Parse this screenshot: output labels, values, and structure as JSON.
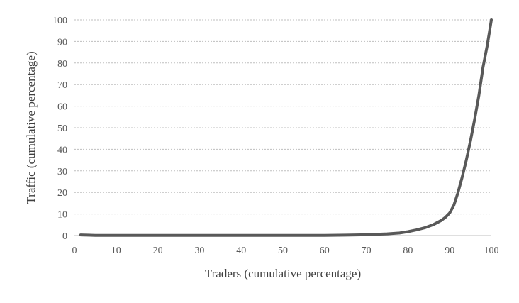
{
  "chart_data": {
    "type": "line",
    "title": "",
    "xlabel": "Traders (cumulative percentage)",
    "ylabel": "Traffic (cumulative percentage)",
    "xlim": [
      0,
      100
    ],
    "ylim": [
      0,
      100
    ],
    "xticks": [
      "0",
      "10",
      "20",
      "30",
      "40",
      "50",
      "60",
      "70",
      "80",
      "90",
      "100"
    ],
    "yticks": [
      "0",
      "10",
      "20",
      "30",
      "40",
      "50",
      "60",
      "70",
      "80",
      "90",
      "100"
    ],
    "grid": "horizontal dotted",
    "legend": "none",
    "series": [
      {
        "color": "#595959",
        "x": [
          1.5,
          5,
          10,
          20,
          30,
          40,
          50,
          60,
          65,
          70,
          75,
          78,
          80,
          82,
          84,
          86,
          88,
          89,
          90,
          91,
          92,
          93,
          94,
          95,
          96,
          97,
          98,
          99,
          99.5,
          100
        ],
        "y": [
          0.3,
          0.1,
          0.1,
          0.1,
          0.1,
          0.1,
          0.1,
          0.1,
          0.2,
          0.4,
          0.8,
          1.2,
          1.8,
          2.6,
          3.6,
          5.0,
          7.0,
          8.5,
          10.5,
          14,
          20,
          27,
          35,
          44,
          54,
          65,
          78,
          88,
          94,
          100
        ]
      }
    ]
  }
}
